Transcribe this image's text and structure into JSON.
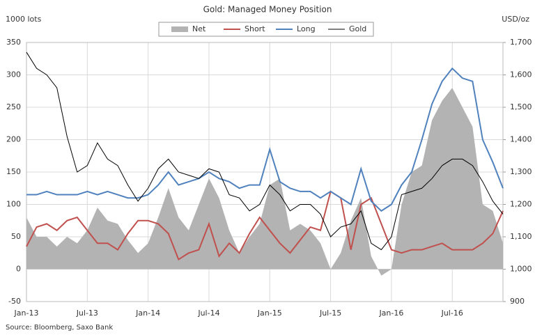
{
  "chart_data": {
    "type": "line",
    "title": "Gold:  Managed Money Position",
    "y_label": "1000 lots",
    "y2_label": "USD/oz",
    "source": "Source: Bloomberg, Saxo Bank",
    "categories": [
      "Jan-13",
      null,
      null,
      null,
      null,
      null,
      "Jul-13",
      null,
      null,
      null,
      null,
      null,
      "Jan-14",
      null,
      null,
      null,
      null,
      null,
      "Jul-14",
      null,
      null,
      null,
      null,
      null,
      "Jan-15",
      null,
      null,
      null,
      null,
      null,
      "Jul-15",
      null,
      null,
      null,
      null,
      null,
      "Jan-16",
      null,
      null,
      null,
      null,
      null,
      "Jul-16",
      null,
      null,
      null,
      null,
      null
    ],
    "series": [
      {
        "name": "Net",
        "color": "#b3b3b3",
        "style": "area",
        "values": [
          80,
          50,
          50,
          35,
          50,
          40,
          60,
          95,
          75,
          70,
          45,
          25,
          40,
          80,
          125,
          80,
          60,
          100,
          140,
          110,
          60,
          25,
          50,
          70,
          130,
          140,
          60,
          70,
          60,
          40,
          0,
          25,
          75,
          110,
          20,
          -10,
          0,
          100,
          150,
          160,
          230,
          260,
          280,
          250,
          220,
          100,
          90,
          40
        ]
      },
      {
        "name": "Short",
        "color": "#c0504d",
        "values": [
          35,
          65,
          70,
          60,
          75,
          80,
          60,
          40,
          40,
          30,
          55,
          75,
          75,
          70,
          55,
          15,
          25,
          30,
          70,
          20,
          40,
          25,
          55,
          80,
          60,
          40,
          25,
          45,
          65,
          60,
          120,
          110,
          30,
          100,
          110,
          70,
          30,
          25,
          30,
          30,
          35,
          40,
          30,
          30,
          30,
          40,
          55,
          90
        ]
      },
      {
        "name": "Long",
        "color": "#4f81bd",
        "values": [
          115,
          115,
          120,
          115,
          115,
          115,
          120,
          115,
          120,
          115,
          110,
          110,
          115,
          130,
          150,
          130,
          135,
          140,
          150,
          140,
          135,
          125,
          130,
          130,
          185,
          135,
          125,
          120,
          120,
          110,
          120,
          110,
          100,
          155,
          105,
          90,
          100,
          130,
          150,
          200,
          255,
          290,
          310,
          295,
          290,
          200,
          165,
          125
        ]
      },
      {
        "name": "Gold",
        "color": "#000000",
        "axis": "y2",
        "values": [
          1670,
          1620,
          1600,
          1560,
          1410,
          1300,
          1320,
          1390,
          1340,
          1320,
          1260,
          1210,
          1250,
          1310,
          1340,
          1300,
          1290,
          1280,
          1310,
          1300,
          1230,
          1220,
          1180,
          1200,
          1260,
          1230,
          1180,
          1200,
          1200,
          1170,
          1100,
          1130,
          1140,
          1180,
          1080,
          1060,
          1100,
          1230,
          1240,
          1250,
          1280,
          1320,
          1340,
          1340,
          1320,
          1270,
          1210,
          1170
        ]
      }
    ],
    "ylim": [
      -50,
      350
    ],
    "yticks": [
      -50,
      0,
      50,
      100,
      150,
      200,
      250,
      300,
      350
    ],
    "y2lim": [
      900,
      1700
    ],
    "y2ticks": [
      900,
      {
        "value": 1000,
        "label": "1,000"
      },
      {
        "value": 1100,
        "label": "1,100"
      },
      {
        "value": 1200,
        "label": "1,200"
      },
      {
        "value": 1300,
        "label": "1,300"
      },
      {
        "value": 1400,
        "label": "1,400"
      },
      {
        "value": 1500,
        "label": "1,500"
      },
      {
        "value": 1600,
        "label": "1,600"
      },
      {
        "value": 1700,
        "label": "1,700"
      }
    ],
    "grid": true
  }
}
